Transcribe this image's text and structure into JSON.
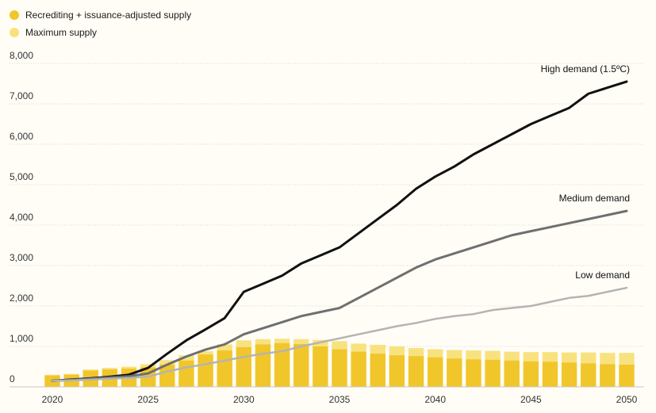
{
  "legend": {
    "items": [
      {
        "label": "Recrediting + issuance-adjusted supply",
        "color": "#f1c62b"
      },
      {
        "label": "Maximum supply",
        "color": "#f8e27f"
      }
    ]
  },
  "chart_data": {
    "type": "bar",
    "xlim": [
      2020,
      2050
    ],
    "ylim": [
      0,
      8000
    ],
    "x_ticks": [
      "2020",
      "2025",
      "2030",
      "2035",
      "2040",
      "2045",
      "2050"
    ],
    "y_ticks": [
      "0",
      "1,000",
      "2,000",
      "3,000",
      "4,000",
      "5,000",
      "6,000",
      "7,000",
      "8,000"
    ],
    "grid": true,
    "legend_position": "top-left",
    "years": [
      2020,
      2021,
      2022,
      2023,
      2024,
      2025,
      2026,
      2027,
      2028,
      2029,
      2030,
      2031,
      2032,
      2033,
      2034,
      2035,
      2036,
      2037,
      2038,
      2039,
      2040,
      2041,
      2042,
      2043,
      2044,
      2045,
      2046,
      2047,
      2048,
      2049,
      2050
    ],
    "bars": [
      {
        "name": "Recrediting + issuance-adjusted supply",
        "color": "#f1c62b",
        "values": [
          280,
          300,
          400,
          430,
          450,
          480,
          550,
          650,
          800,
          900,
          980,
          1050,
          1080,
          1060,
          1000,
          930,
          870,
          820,
          780,
          760,
          730,
          700,
          680,
          670,
          650,
          630,
          620,
          600,
          580,
          560,
          550
        ]
      },
      {
        "name": "Maximum supply",
        "color": "#f8e27f",
        "values": [
          300,
          320,
          430,
          470,
          500,
          560,
          660,
          780,
          880,
          1050,
          1150,
          1180,
          1190,
          1180,
          1160,
          1130,
          1070,
          1040,
          1000,
          960,
          930,
          910,
          900,
          890,
          870,
          860,
          860,
          850,
          850,
          840,
          840
        ]
      }
    ],
    "series": [
      {
        "name": "High demand (1.5ºC)",
        "color": "#111111",
        "values": [
          150,
          180,
          210,
          250,
          300,
          470,
          820,
          1150,
          1420,
          1700,
          2350,
          2550,
          2750,
          3050,
          3250,
          3450,
          3800,
          4150,
          4500,
          4900,
          5200,
          5450,
          5750,
          6000,
          6250,
          6500,
          6700,
          6900,
          7250,
          7400,
          7550
        ]
      },
      {
        "name": "Medium demand",
        "color": "#6f6f6f",
        "values": [
          150,
          170,
          200,
          230,
          260,
          330,
          550,
          750,
          920,
          1050,
          1300,
          1450,
          1600,
          1750,
          1850,
          1950,
          2200,
          2450,
          2700,
          2950,
          3150,
          3300,
          3450,
          3600,
          3750,
          3850,
          3950,
          4050,
          4150,
          4250,
          4350
        ]
      },
      {
        "name": "Low demand",
        "color": "#b4b4b4",
        "values": [
          150,
          160,
          180,
          200,
          220,
          250,
          380,
          480,
          560,
          650,
          740,
          820,
          880,
          1000,
          1100,
          1200,
          1300,
          1400,
          1500,
          1580,
          1680,
          1750,
          1800,
          1900,
          1950,
          2000,
          2100,
          2200,
          2250,
          2350,
          2450
        ]
      }
    ]
  }
}
